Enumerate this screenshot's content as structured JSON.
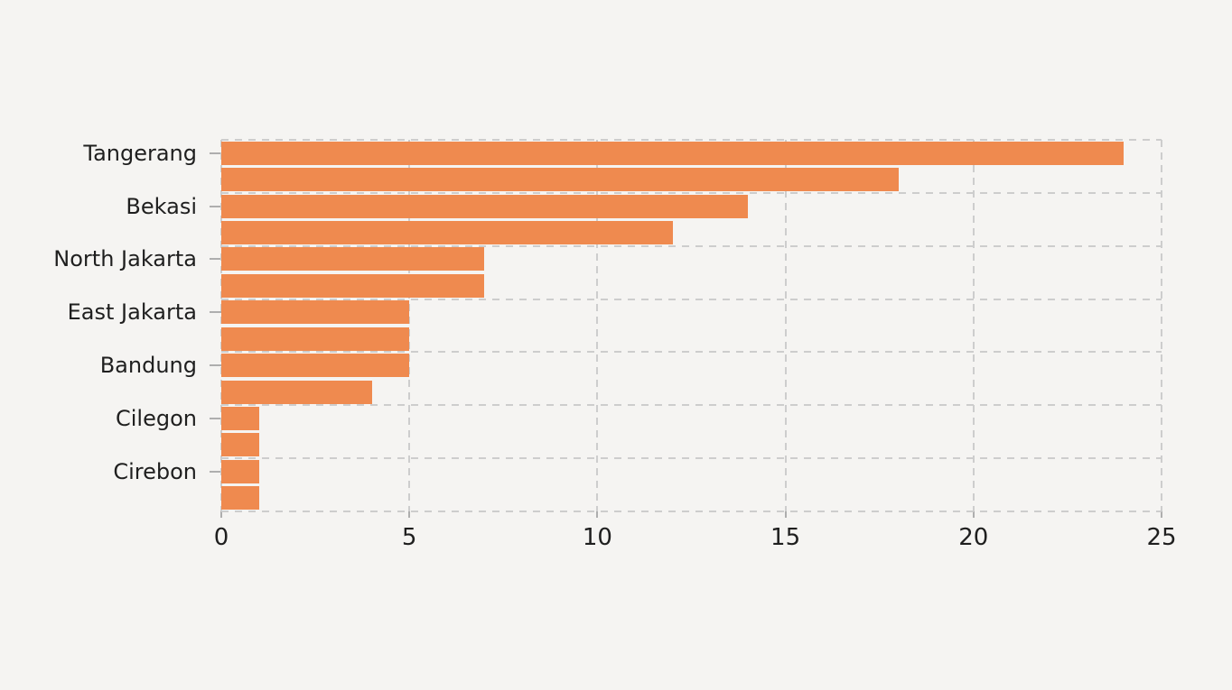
{
  "chart_data": {
    "type": "bar",
    "orientation": "horizontal",
    "title": "",
    "xlabel": "",
    "ylabel": "",
    "xlim": [
      0,
      25
    ],
    "x_ticks": [
      0,
      5,
      10,
      15,
      20,
      25
    ],
    "grid": "dashed-both-axes",
    "legend": "none",
    "colors": {
      "bar": "#ef8a4f",
      "background": "#f5f4f2",
      "gridline": "#cdcdcd",
      "tick_mark": "#aeaeae",
      "text": "#1f1f1f"
    },
    "y_tick_labels": [
      "Tangerang",
      "Bekasi",
      "North Jakarta",
      "East Jakarta",
      "Bandung",
      "Cilegon",
      "Cirebon"
    ],
    "bars": [
      {
        "label": "Tangerang",
        "value": 24
      },
      {
        "label": "",
        "value": 18
      },
      {
        "label": "Bekasi",
        "value": 14
      },
      {
        "label": "",
        "value": 12
      },
      {
        "label": "North Jakarta",
        "value": 7
      },
      {
        "label": "",
        "value": 7
      },
      {
        "label": "East Jakarta",
        "value": 5
      },
      {
        "label": "",
        "value": 5
      },
      {
        "label": "Bandung",
        "value": 5
      },
      {
        "label": "",
        "value": 4
      },
      {
        "label": "Cilegon",
        "value": 1
      },
      {
        "label": "",
        "value": 1
      },
      {
        "label": "Cirebon",
        "value": 1
      },
      {
        "label": "",
        "value": 1
      }
    ]
  }
}
